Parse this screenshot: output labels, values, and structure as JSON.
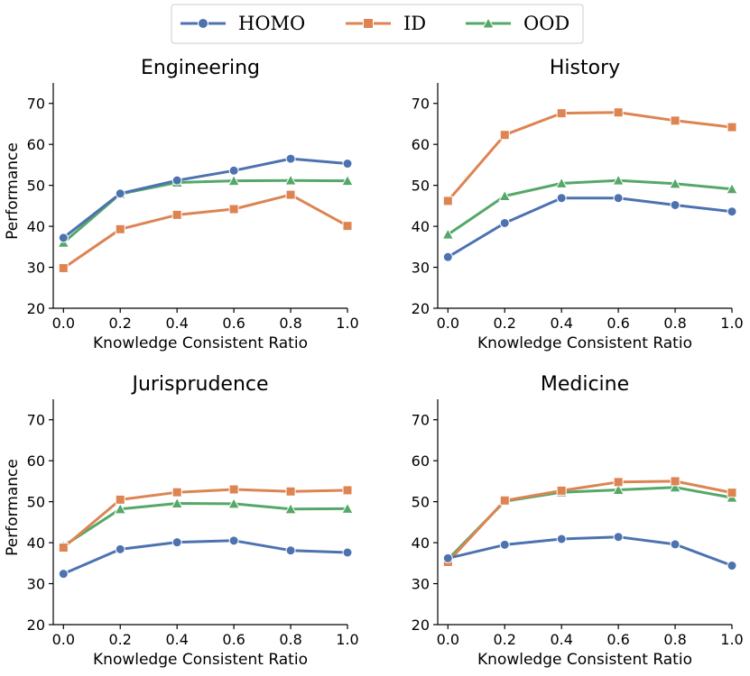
{
  "legend": {
    "entries": [
      {
        "name": "HOMO",
        "color": "#4c72b0",
        "marker": "circle"
      },
      {
        "name": "ID",
        "color": "#dd8452",
        "marker": "square"
      },
      {
        "name": "OOD",
        "color": "#55a868",
        "marker": "triangle"
      }
    ]
  },
  "chart_data": [
    {
      "type": "line",
      "title": "Engineering",
      "xlabel": "Knowledge Consistent Ratio",
      "ylabel": "Performance",
      "x": [
        0.0,
        0.2,
        0.4,
        0.6,
        0.8,
        1.0
      ],
      "xticks": [
        "0.0",
        "0.2",
        "0.4",
        "0.6",
        "0.8",
        "1.0"
      ],
      "yticks": [
        "20",
        "30",
        "40",
        "50",
        "60",
        "70"
      ],
      "ylim": [
        20,
        75
      ],
      "xlim": [
        -0.02,
        1.0
      ],
      "series": [
        {
          "name": "HOMO",
          "values": [
            37.2,
            48.0,
            51.2,
            53.6,
            56.5,
            55.3
          ]
        },
        {
          "name": "ID",
          "values": [
            29.8,
            39.3,
            42.8,
            44.2,
            47.7,
            40.1
          ]
        },
        {
          "name": "OOD",
          "values": [
            36.0,
            47.9,
            50.7,
            51.1,
            51.2,
            51.1
          ]
        }
      ]
    },
    {
      "type": "line",
      "title": "History",
      "xlabel": "Knowledge Consistent Ratio",
      "ylabel": "",
      "x": [
        0.0,
        0.2,
        0.4,
        0.6,
        0.8,
        1.0
      ],
      "xticks": [
        "0.0",
        "0.2",
        "0.4",
        "0.6",
        "0.8",
        "1.0"
      ],
      "yticks": [
        "20",
        "30",
        "40",
        "50",
        "60",
        "70"
      ],
      "ylim": [
        20,
        75
      ],
      "xlim": [
        -0.02,
        1.0
      ],
      "series": [
        {
          "name": "HOMO",
          "values": [
            32.5,
            40.8,
            46.9,
            46.9,
            45.2,
            43.6
          ]
        },
        {
          "name": "ID",
          "values": [
            46.2,
            62.3,
            67.6,
            67.8,
            65.8,
            64.2
          ]
        },
        {
          "name": "OOD",
          "values": [
            38.0,
            47.4,
            50.5,
            51.2,
            50.4,
            49.1
          ]
        }
      ]
    },
    {
      "type": "line",
      "title": "Jurisprudence",
      "xlabel": "Knowledge Consistent Ratio",
      "ylabel": "Performance",
      "x": [
        0.0,
        0.2,
        0.4,
        0.6,
        0.8,
        1.0
      ],
      "xticks": [
        "0.0",
        "0.2",
        "0.4",
        "0.6",
        "0.8",
        "1.0"
      ],
      "yticks": [
        "20",
        "30",
        "40",
        "50",
        "60",
        "70"
      ],
      "ylim": [
        20,
        75
      ],
      "xlim": [
        -0.02,
        1.0
      ],
      "series": [
        {
          "name": "HOMO",
          "values": [
            32.4,
            38.4,
            40.1,
            40.5,
            38.1,
            37.6
          ]
        },
        {
          "name": "ID",
          "values": [
            38.8,
            50.5,
            52.3,
            53.0,
            52.5,
            52.8
          ]
        },
        {
          "name": "OOD",
          "values": [
            39.2,
            48.2,
            49.6,
            49.5,
            48.2,
            48.3
          ]
        }
      ]
    },
    {
      "type": "line",
      "title": "Medicine",
      "xlabel": "Knowledge Consistent Ratio",
      "ylabel": "",
      "x": [
        0.0,
        0.2,
        0.4,
        0.6,
        0.8,
        1.0
      ],
      "xticks": [
        "0.0",
        "0.2",
        "0.4",
        "0.6",
        "0.8",
        "1.0"
      ],
      "yticks": [
        "20",
        "30",
        "40",
        "50",
        "60",
        "70"
      ],
      "ylim": [
        20,
        75
      ],
      "xlim": [
        -0.02,
        1.0
      ],
      "series": [
        {
          "name": "HOMO",
          "values": [
            36.2,
            39.5,
            40.9,
            41.4,
            39.6,
            34.4
          ]
        },
        {
          "name": "ID",
          "values": [
            35.3,
            50.3,
            52.7,
            54.8,
            55.0,
            52.2
          ]
        },
        {
          "name": "OOD",
          "values": [
            35.9,
            50.1,
            52.3,
            52.9,
            53.5,
            51.0
          ]
        }
      ]
    }
  ]
}
